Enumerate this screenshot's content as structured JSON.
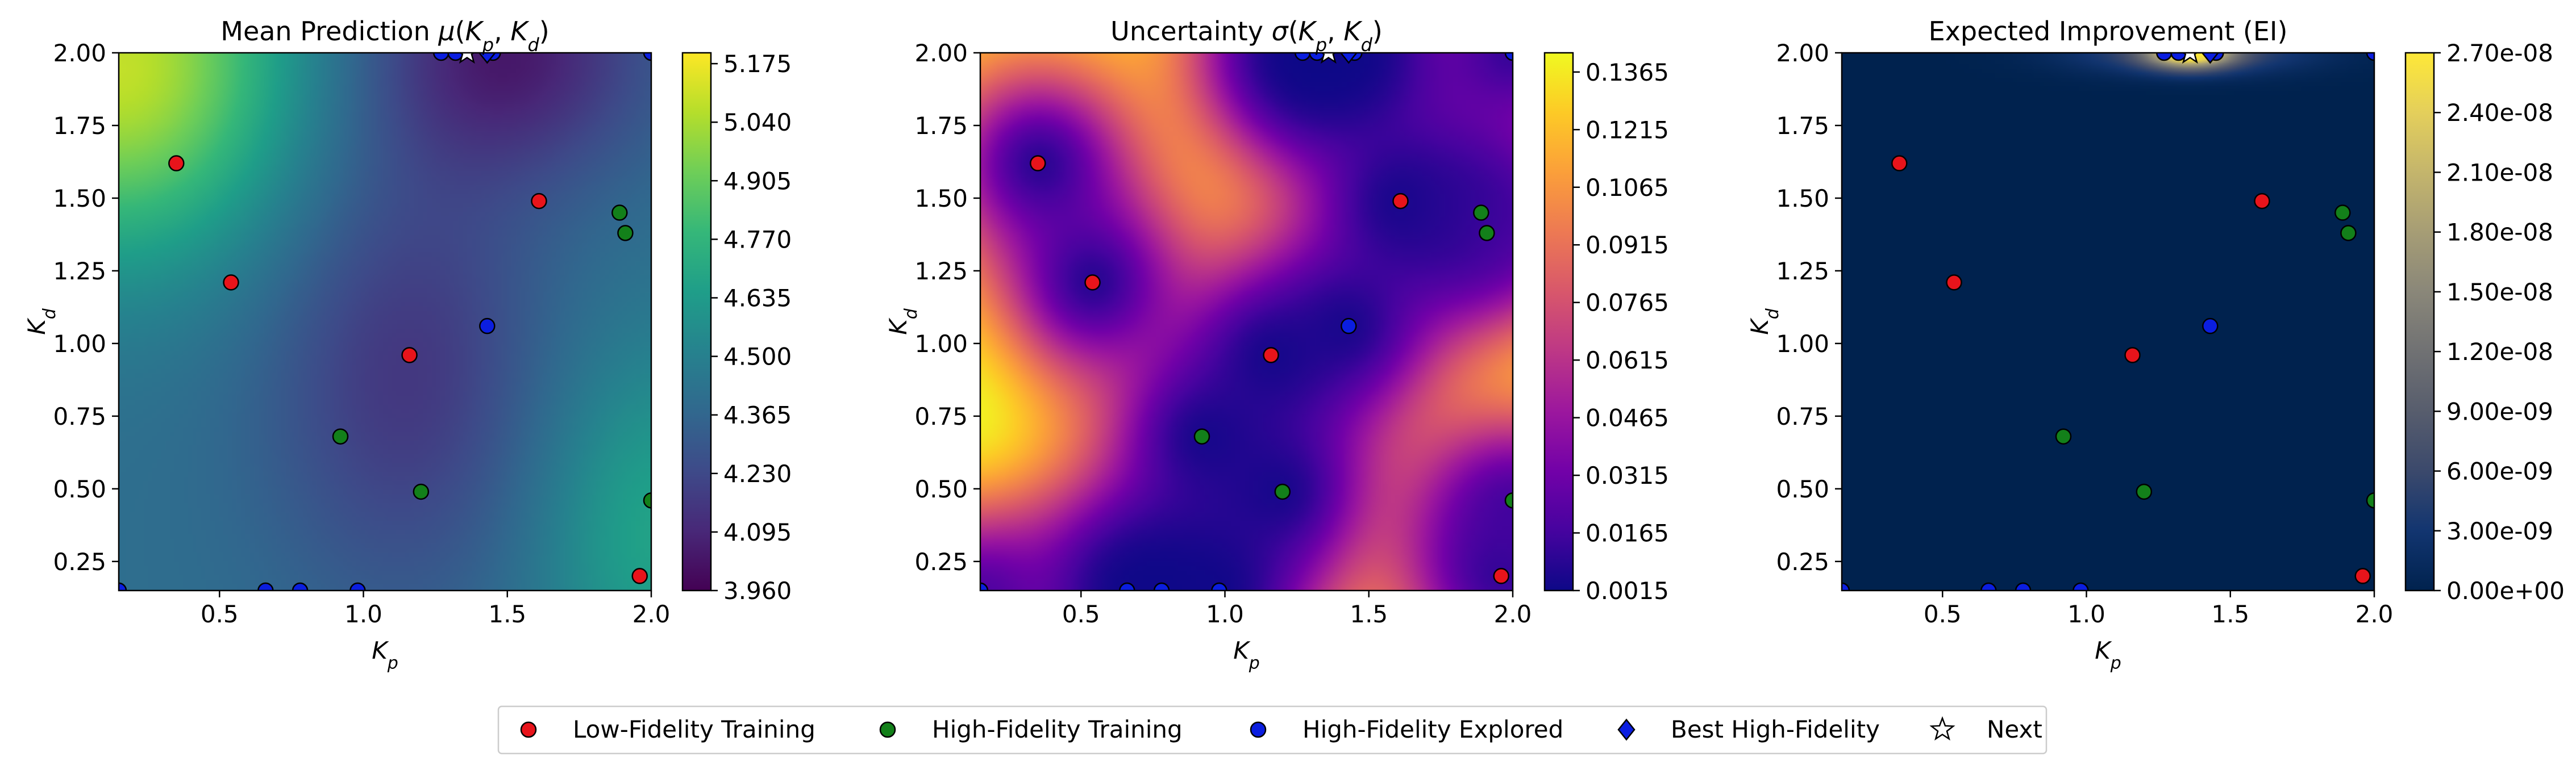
{
  "chart_data": [
    {
      "type": "heatmap",
      "title": "Mean Prediction μ(K_p, K_d)",
      "xlabel": "K_p",
      "ylabel": "K_d",
      "xlim": [
        0.15,
        2.0
      ],
      "ylim": [
        0.15,
        2.0
      ],
      "xticks": [
        "0.5",
        "1.0",
        "1.5",
        "2.0"
      ],
      "yticks": [
        "0.25",
        "0.50",
        "0.75",
        "1.00",
        "1.25",
        "1.50",
        "1.75",
        "2.00"
      ],
      "colormap": "viridis",
      "colorbar": {
        "range": [
          3.96,
          5.2
        ],
        "ticks": [
          "3.960",
          "4.095",
          "4.230",
          "4.365",
          "4.500",
          "4.635",
          "4.770",
          "4.905",
          "5.040",
          "5.175"
        ]
      }
    },
    {
      "type": "heatmap",
      "title": "Uncertainty σ(K_p, K_d)",
      "xlabel": "K_p",
      "ylabel": "K_d",
      "xlim": [
        0.15,
        2.0
      ],
      "ylim": [
        0.15,
        2.0
      ],
      "xticks": [
        "0.5",
        "1.0",
        "1.5",
        "2.0"
      ],
      "yticks": [
        "0.25",
        "0.50",
        "0.75",
        "1.00",
        "1.25",
        "1.50",
        "1.75",
        "2.00"
      ],
      "colormap": "plasma",
      "colorbar": {
        "range": [
          0.0015,
          0.1415
        ],
        "ticks": [
          "0.0015",
          "0.0165",
          "0.0315",
          "0.0465",
          "0.0615",
          "0.0765",
          "0.0915",
          "0.1065",
          "0.1215",
          "0.1365"
        ]
      }
    },
    {
      "type": "heatmap",
      "title": "Expected Improvement (EI)",
      "xlabel": "K_p",
      "ylabel": "K_d",
      "xlim": [
        0.15,
        2.0
      ],
      "ylim": [
        0.15,
        2.0
      ],
      "xticks": [
        "0.5",
        "1.0",
        "1.5",
        "2.0"
      ],
      "yticks": [
        "0.25",
        "0.50",
        "0.75",
        "1.00",
        "1.25",
        "1.50",
        "1.75",
        "2.00"
      ],
      "colormap": "cividis",
      "colorbar": {
        "range": [
          0.0,
          2.7e-08
        ],
        "ticks": [
          "0.00e+00",
          "3.00e-09",
          "6.00e-09",
          "9.00e-09",
          "1.20e-08",
          "1.50e-08",
          "1.80e-08",
          "2.10e-08",
          "2.40e-08",
          "2.70e-08"
        ]
      }
    }
  ],
  "points": {
    "low_fidelity": [
      [
        0.35,
        1.62
      ],
      [
        0.54,
        1.21
      ],
      [
        1.16,
        0.96
      ],
      [
        1.61,
        1.49
      ],
      [
        1.96,
        0.2
      ]
    ],
    "high_fidelity": [
      [
        0.92,
        0.68
      ],
      [
        1.2,
        0.49
      ],
      [
        1.89,
        1.45
      ],
      [
        1.91,
        1.38
      ],
      [
        2.0,
        0.46
      ]
    ],
    "explored": [
      [
        0.15,
        0.15
      ],
      [
        0.66,
        0.15
      ],
      [
        0.78,
        0.15
      ],
      [
        0.98,
        0.15
      ],
      [
        1.43,
        1.06
      ],
      [
        1.27,
        2.0
      ],
      [
        1.32,
        2.0
      ],
      [
        1.45,
        2.0
      ],
      [
        2.0,
        2.0
      ]
    ],
    "best": [
      1.43,
      2.0
    ],
    "next": [
      1.36,
      2.0
    ]
  },
  "legend": {
    "placement": "bottom-center",
    "items": [
      {
        "label": "Low-Fidelity Training",
        "marker": "circle",
        "color": "#e8141b"
      },
      {
        "label": "High-Fidelity Training",
        "marker": "circle",
        "color": "#13801a"
      },
      {
        "label": "High-Fidelity Explored",
        "marker": "circle",
        "color": "#0b1ee0"
      },
      {
        "label": "Best High-Fidelity",
        "marker": "diamond",
        "color": "#0b1ee0"
      },
      {
        "label": "Next",
        "marker": "star",
        "color": "#ffffff"
      }
    ]
  }
}
